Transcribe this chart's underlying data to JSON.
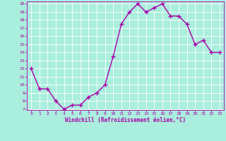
{
  "x": [
    0,
    1,
    2,
    3,
    4,
    5,
    6,
    7,
    8,
    9,
    10,
    11,
    12,
    13,
    14,
    15,
    16,
    17,
    18,
    19,
    20,
    21,
    22,
    23
  ],
  "y": [
    12,
    9.5,
    9.5,
    8,
    7,
    7.5,
    7.5,
    8.5,
    9,
    10,
    13.5,
    17.5,
    19,
    20,
    19,
    19.5,
    20,
    18.5,
    18.5,
    17.5,
    15,
    15.5,
    14,
    14
  ],
  "line_color": "#aa00aa",
  "marker": "+",
  "marker_size": 4,
  "line_width": 1.0,
  "bg_color": "#aaeedd",
  "grid_color": "#cceeee",
  "xlabel": "Windchill (Refroidissement éolien,°C)",
  "xlabel_color": "#aa00aa",
  "tick_color": "#aa00aa",
  "ylim": [
    7,
    20
  ],
  "xlim": [
    -0.5,
    23.5
  ],
  "yticks": [
    7,
    8,
    9,
    10,
    11,
    12,
    13,
    14,
    15,
    16,
    17,
    18,
    19,
    20
  ],
  "xticks": [
    0,
    1,
    2,
    3,
    4,
    5,
    6,
    7,
    8,
    9,
    10,
    11,
    12,
    13,
    14,
    15,
    16,
    17,
    18,
    19,
    20,
    21,
    22,
    23
  ],
  "figsize": [
    3.2,
    2.0
  ],
  "dpi": 100
}
